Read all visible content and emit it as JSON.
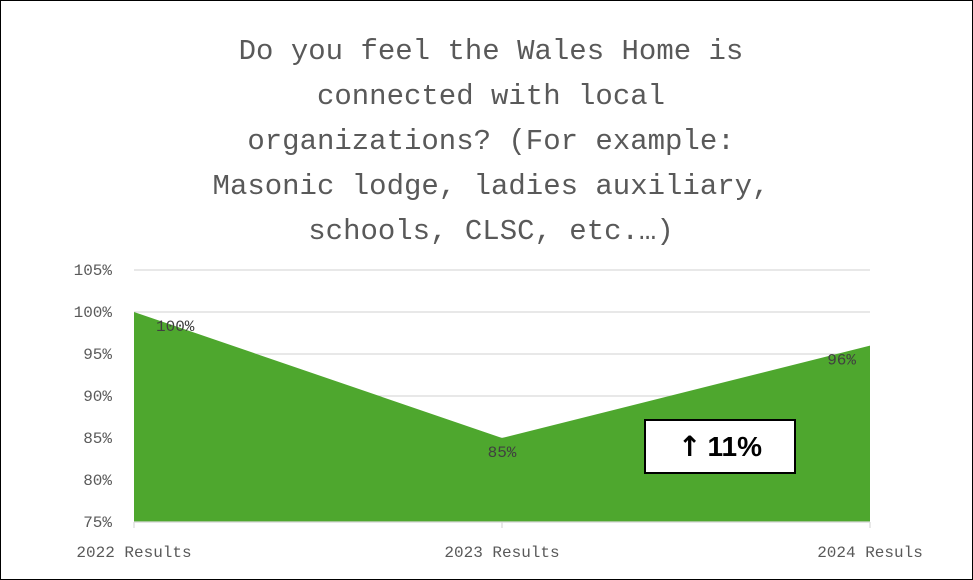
{
  "chart_data": {
    "type": "area",
    "title": "Do you feel the Wales Home is connected with local organizations? (For example: Masonic lodge, ladies auxiliary, schools, CLSC, etc.…)",
    "title_lines": [
      "Do you feel the Wales Home is",
      "connected with local",
      "organizations? (For example:",
      "Masonic lodge, ladies auxiliary,",
      "schools, CLSC, etc.…)"
    ],
    "categories": [
      "2022 Results",
      "2023 Results",
      "2024 Resuls"
    ],
    "values": [
      100,
      85,
      96
    ],
    "data_labels": [
      "100%",
      "85%",
      "96%"
    ],
    "ylim": [
      75,
      105
    ],
    "yticks": [
      105,
      100,
      95,
      90,
      85,
      80,
      75
    ],
    "ytick_labels": [
      "105%",
      "100%",
      "95%",
      "90%",
      "85%",
      "80%",
      "75%"
    ],
    "grid": true,
    "legend": "none",
    "xlabel": "",
    "ylabel": "",
    "fill_color": "#4ea72e",
    "annotation": {
      "arrow": "↑",
      "text": "11%"
    }
  }
}
